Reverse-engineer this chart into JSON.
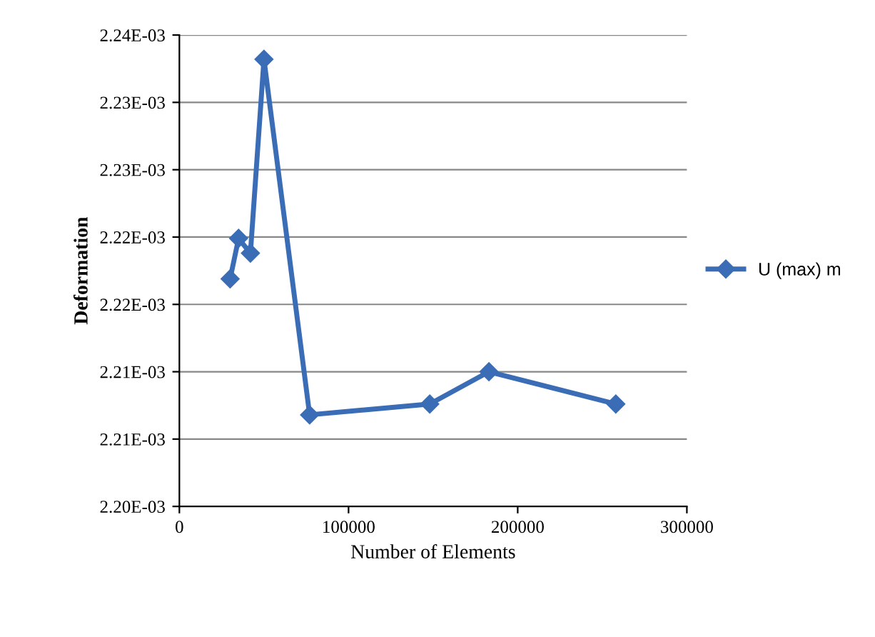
{
  "chart_data": {
    "type": "line",
    "xlabel": "Number of Elements",
    "ylabel": "Deformation",
    "x": [
      30000,
      35000,
      42000,
      50000,
      77000,
      148000,
      183000,
      258000
    ],
    "series": [
      {
        "name": "U (max) m",
        "color": "#3a6db5",
        "values": [
          0.0022169,
          0.0022199,
          0.0022188,
          0.0022332,
          0.0022068,
          0.0022076,
          0.00221,
          0.0022076
        ]
      }
    ],
    "xlim": [
      0,
      300000
    ],
    "xticks": [
      0,
      100000,
      200000,
      300000
    ],
    "ylim": [
      0.0022,
      0.002235
    ],
    "yticks": [
      {
        "value": 0.0022,
        "label": "2.20E-03"
      },
      {
        "value": 0.002205,
        "label": "2.21E-03"
      },
      {
        "value": 0.00221,
        "label": "2.21E-03"
      },
      {
        "value": 0.002215,
        "label": "2.22E-03"
      },
      {
        "value": 0.00222,
        "label": "2.22E-03"
      },
      {
        "value": 0.002225,
        "label": "2.23E-03"
      },
      {
        "value": 0.00223,
        "label": "2.23E-03"
      },
      {
        "value": 0.002235,
        "label": "2.24E-03"
      }
    ],
    "grid": "y",
    "legend": "right",
    "marker": "diamond",
    "line_style": "solid"
  }
}
